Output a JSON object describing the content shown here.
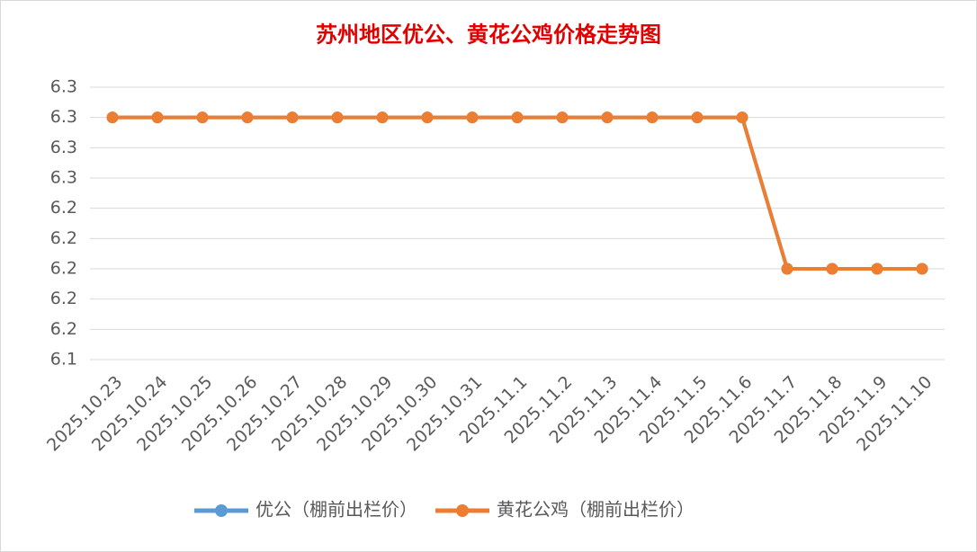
{
  "chart_data": {
    "type": "line",
    "title": "苏州地区优公、黄花公鸡价格走势图",
    "categories": [
      "2025.10.23",
      "2025.10.24",
      "2025.10.25",
      "2025.10.26",
      "2025.10.27",
      "2025.10.28",
      "2025.10.29",
      "2025.10.30",
      "2025.10.31",
      "2025.11.1",
      "2025.11.2",
      "2025.11.3",
      "2025.11.4",
      "2025.11.5",
      "2025.11.6",
      "2025.11.7",
      "2025.11.8",
      "2025.11.9",
      "2025.11.10"
    ],
    "series": [
      {
        "name": "优公（棚前出栏价）",
        "color": "#5b9bd5",
        "values": [
          6.3,
          6.3,
          6.3,
          6.3,
          6.3,
          6.3,
          6.3,
          6.3,
          6.3,
          6.3,
          6.3,
          6.3,
          6.3,
          6.3,
          6.3,
          6.2,
          6.2,
          6.2,
          6.2
        ]
      },
      {
        "name": "黄花公鸡（棚前出栏价）",
        "color": "#ed7d31",
        "values": [
          6.3,
          6.3,
          6.3,
          6.3,
          6.3,
          6.3,
          6.3,
          6.3,
          6.3,
          6.3,
          6.3,
          6.3,
          6.3,
          6.3,
          6.3,
          6.2,
          6.2,
          6.2,
          6.2
        ]
      }
    ],
    "ylim": [
      6.14,
      6.32
    ],
    "yticks": [
      {
        "value": 6.14,
        "label": "6.1"
      },
      {
        "value": 6.16,
        "label": "6.2"
      },
      {
        "value": 6.18,
        "label": "6.2"
      },
      {
        "value": 6.2,
        "label": "6.2"
      },
      {
        "value": 6.22,
        "label": "6.2"
      },
      {
        "value": 6.24,
        "label": "6.2"
      },
      {
        "value": 6.26,
        "label": "6.3"
      },
      {
        "value": 6.28,
        "label": "6.3"
      },
      {
        "value": 6.3,
        "label": "6.3"
      },
      {
        "value": 6.32,
        "label": "6.3"
      }
    ],
    "grid": true,
    "legend": "bottom"
  }
}
